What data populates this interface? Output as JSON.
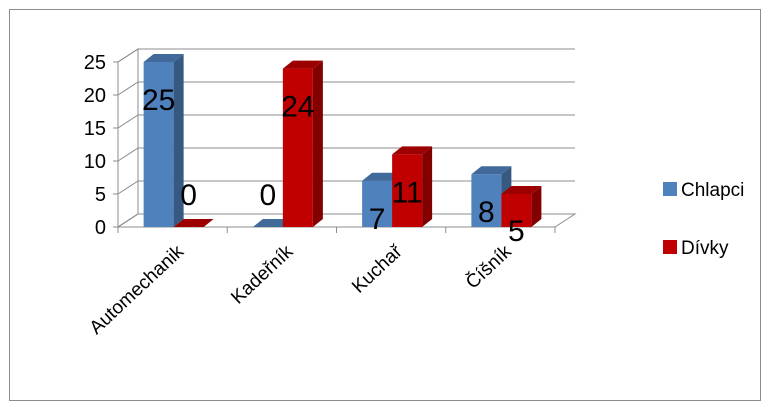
{
  "chart_data": {
    "type": "bar",
    "categories": [
      "Automechanik",
      "Kadeřník",
      "Kuchař",
      "Číšník"
    ],
    "series": [
      {
        "name": "Chlapci",
        "values": [
          25,
          0,
          7,
          8
        ],
        "color": "#4F81BD"
      },
      {
        "name": "Dívky",
        "values": [
          0,
          24,
          11,
          5
        ],
        "color": "#C00000"
      }
    ],
    "ylim": [
      0,
      25
    ],
    "yticks": [
      "0",
      "5",
      "10",
      "15",
      "20",
      "25"
    ],
    "data_labels": [
      [
        "25",
        "0",
        "7",
        "8"
      ],
      [
        "0",
        "24",
        "11",
        "5"
      ]
    ],
    "grid": true,
    "legend": "right",
    "style": "3d-clustered-column"
  }
}
